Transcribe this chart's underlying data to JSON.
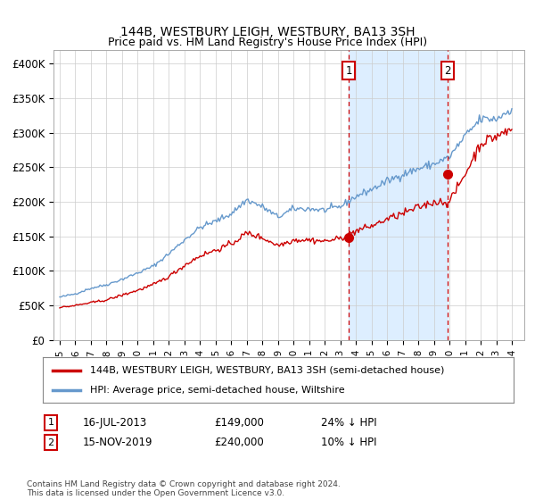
{
  "title": "144B, WESTBURY LEIGH, WESTBURY, BA13 3SH",
  "subtitle": "Price paid vs. HM Land Registry's House Price Index (HPI)",
  "legend_line1": "144B, WESTBURY LEIGH, WESTBURY, BA13 3SH (semi-detached house)",
  "legend_line2": "HPI: Average price, semi-detached house, Wiltshire",
  "annotation1_date": "16-JUL-2013",
  "annotation1_price": "£149,000",
  "annotation1_text": "24% ↓ HPI",
  "annotation2_date": "15-NOV-2019",
  "annotation2_price": "£240,000",
  "annotation2_text": "10% ↓ HPI",
  "footer": "Contains HM Land Registry data © Crown copyright and database right 2024.\nThis data is licensed under the Open Government Licence v3.0.",
  "background_color": "#ffffff",
  "grid_color": "#cccccc",
  "hpi_color": "#6699cc",
  "price_color": "#cc0000",
  "shade_color": "#ddeeff",
  "ann1_x": 2013.54,
  "ann1_y": 149000,
  "ann2_x": 2019.87,
  "ann2_y": 240000,
  "xlim_left": 1994.6,
  "xlim_right": 2024.8,
  "ylim": [
    0,
    420000
  ]
}
